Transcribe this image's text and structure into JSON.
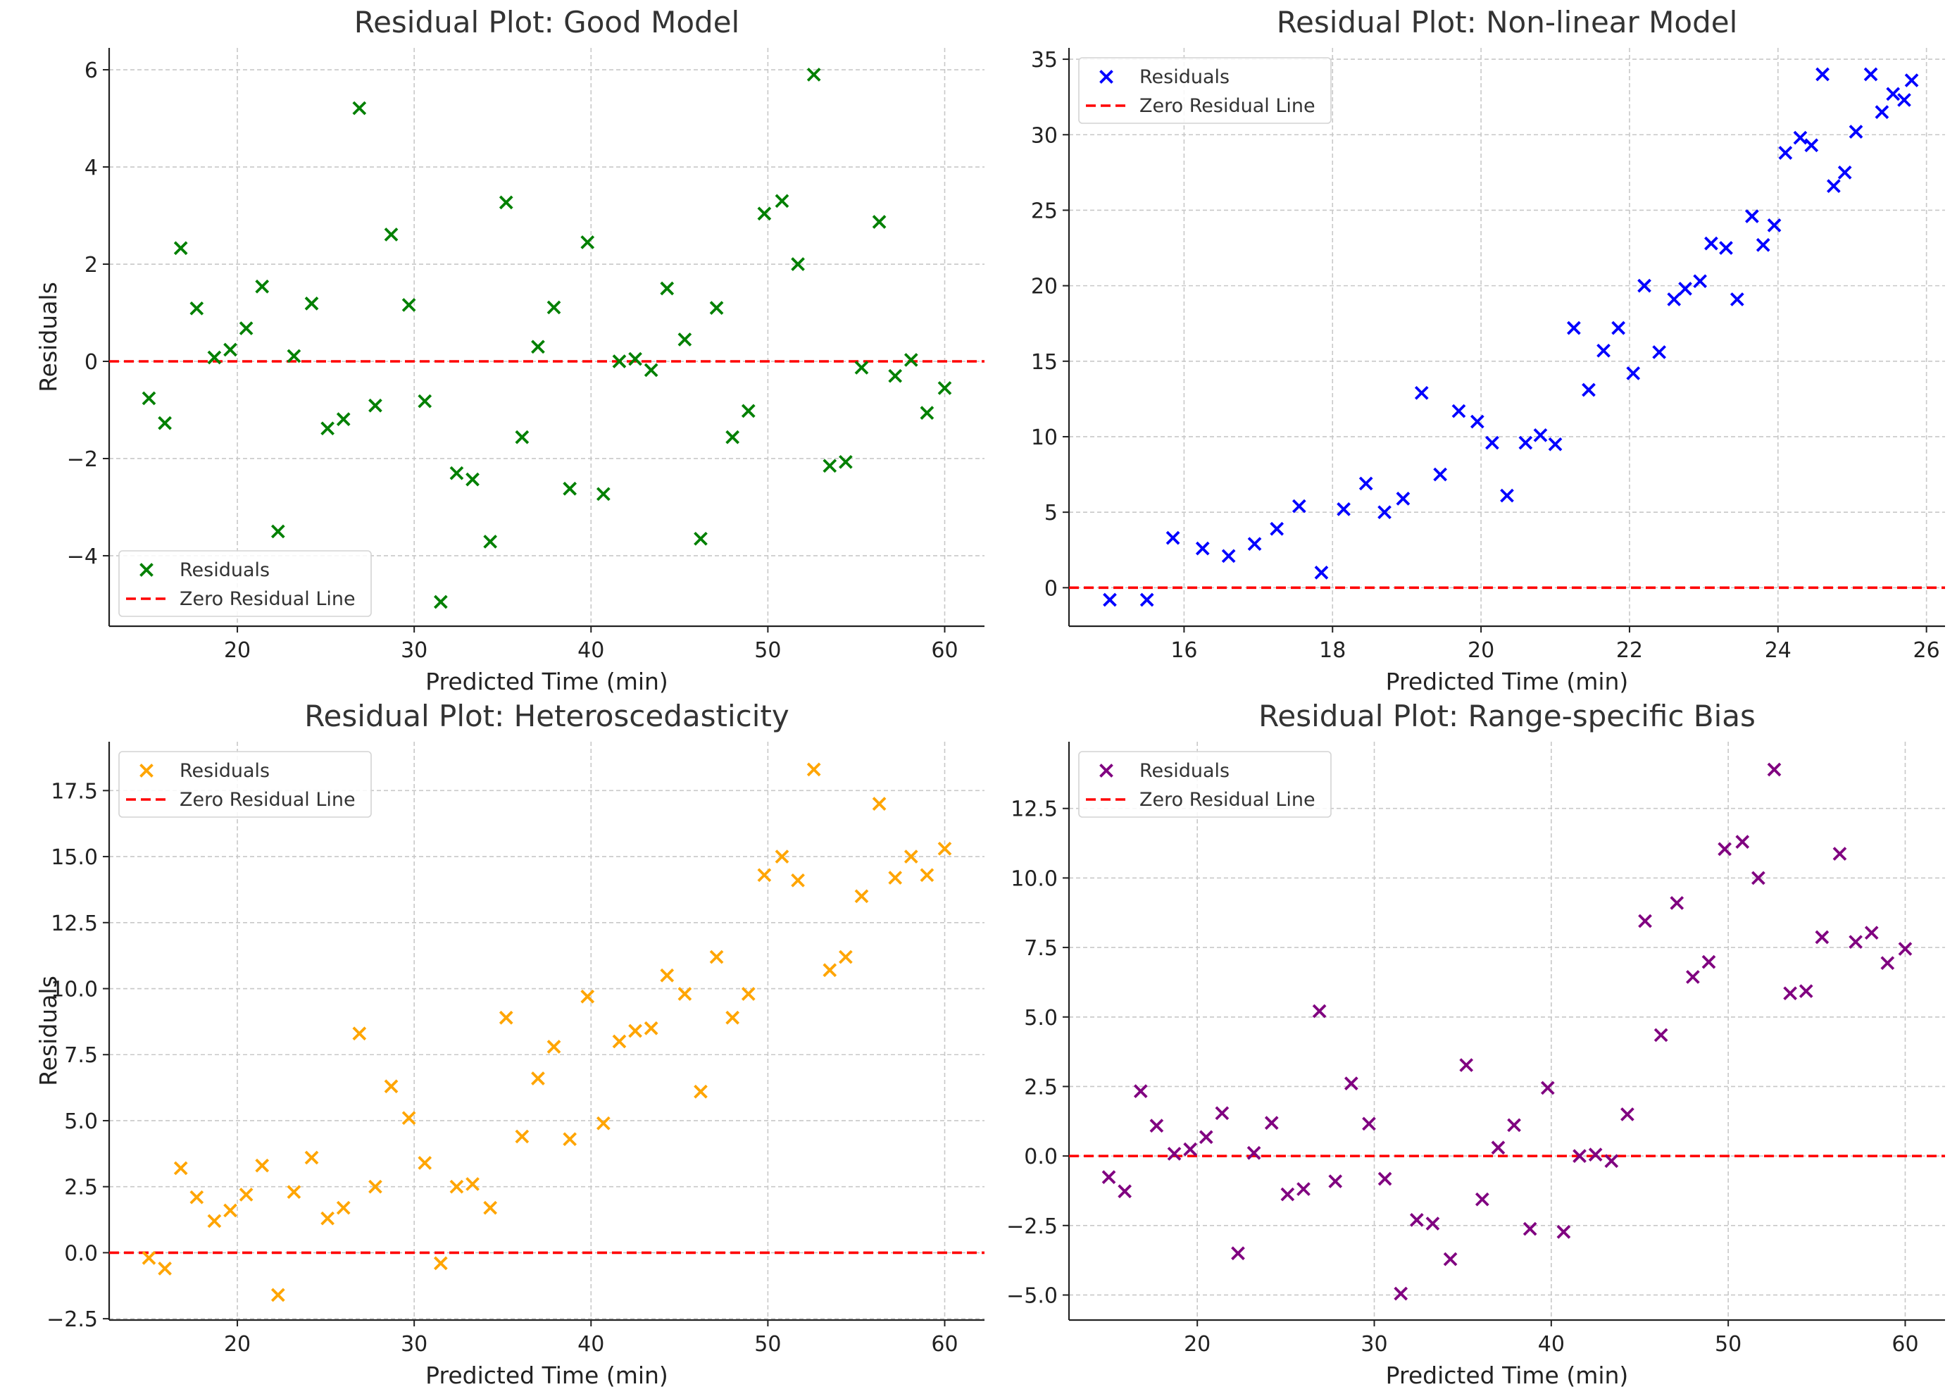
{
  "chart_data": [
    {
      "type": "scatter",
      "title": "Residual Plot: Good Model",
      "xlabel": "Predicted Time (min)",
      "ylabel": "Residuals",
      "xlim": [
        12.75,
        62.25
      ],
      "ylim": [
        -5.45,
        6.45
      ],
      "xticks": [
        20,
        30,
        40,
        50,
        60
      ],
      "yticks": [
        -4,
        -2,
        0,
        2,
        4,
        6
      ],
      "ytick_labels": [
        "−4",
        "−2",
        "0",
        "2",
        "4",
        "6"
      ],
      "color": "#008000",
      "legend_loc": "lower-left",
      "series": [
        {
          "name": "Residuals",
          "x": [
            15,
            15.9,
            16.8,
            17.7,
            18.7,
            19.6,
            20.5,
            21.4,
            22.3,
            23.2,
            24.2,
            25.1,
            26,
            26.9,
            27.8,
            28.7,
            29.7,
            30.6,
            31.5,
            32.4,
            33.3,
            34.3,
            35.2,
            36.1,
            37,
            37.9,
            38.8,
            39.8,
            40.7,
            41.6,
            42.5,
            43.4,
            44.3,
            45.3,
            46.2,
            47.1,
            48,
            48.9,
            49.8,
            50.8,
            51.7,
            52.6,
            53.5,
            54.4,
            55.3,
            56.3,
            57.2,
            58.1,
            59,
            60
          ],
          "y": [
            -0.76,
            -1.27,
            2.33,
            1.09,
            0.08,
            0.24,
            0.68,
            1.54,
            -3.5,
            0.11,
            1.19,
            -1.38,
            -1.19,
            5.21,
            -0.91,
            2.61,
            1.16,
            -0.82,
            -4.95,
            -2.3,
            -2.43,
            -3.71,
            3.27,
            -1.56,
            0.3,
            1.11,
            -2.62,
            2.45,
            -2.73,
            0.0,
            0.05,
            -0.18,
            1.5,
            0.45,
            -3.65,
            1.1,
            -1.56,
            -1.02,
            3.04,
            3.3,
            2.0,
            5.9,
            -2.15,
            -2.07,
            -0.13,
            2.87,
            -0.3,
            0.03,
            -1.06,
            -0.55
          ]
        },
        {
          "name": "Zero Residual Line",
          "y": 0
        }
      ]
    },
    {
      "type": "scatter",
      "title": "Residual Plot: Non-linear Model",
      "xlabel": "Predicted Time (min)",
      "ylabel": "",
      "xlim": [
        14.45,
        26.25
      ],
      "ylim": [
        -2.55,
        35.75
      ],
      "xticks": [
        16,
        18,
        20,
        22,
        24,
        26
      ],
      "yticks": [
        0,
        5,
        10,
        15,
        20,
        25,
        30,
        35
      ],
      "ytick_labels": [
        "0",
        "5",
        "10",
        "15",
        "20",
        "25",
        "30",
        "35"
      ],
      "color": "#0000ff",
      "legend_loc": "upper-left",
      "series": [
        {
          "name": "Residuals",
          "x": [
            15.0,
            15.5,
            15.85,
            16.25,
            16.6,
            16.95,
            17.25,
            17.55,
            17.85,
            18.15,
            18.45,
            18.7,
            18.95,
            19.2,
            19.45,
            19.7,
            19.95,
            20.15,
            20.35,
            20.6,
            20.8,
            21.0,
            21.25,
            21.45,
            21.65,
            21.85,
            22.05,
            22.2,
            22.4,
            22.6,
            22.75,
            22.95,
            23.1,
            23.3,
            23.45,
            23.65,
            23.8,
            23.95,
            24.1,
            24.3,
            24.45,
            24.6,
            24.75,
            24.9,
            25.05,
            25.25,
            25.4,
            25.55,
            25.7,
            25.8
          ],
          "y": [
            -0.8,
            -0.8,
            3.3,
            2.6,
            2.1,
            2.9,
            3.9,
            5.4,
            1.0,
            5.2,
            6.9,
            5.0,
            5.9,
            12.9,
            7.5,
            11.7,
            11.0,
            9.6,
            6.1,
            9.6,
            10.1,
            9.5,
            17.2,
            13.1,
            15.7,
            17.2,
            14.2,
            20.0,
            15.6,
            19.1,
            19.8,
            20.3,
            22.8,
            22.5,
            19.1,
            24.6,
            22.7,
            24.0,
            28.8,
            29.8,
            29.3,
            34.0,
            26.6,
            27.5,
            30.2,
            34.0,
            31.5,
            32.7,
            32.3,
            33.6
          ]
        },
        {
          "name": "Zero Residual Line",
          "y": 0
        }
      ]
    },
    {
      "type": "scatter",
      "title": "Residual Plot: Heteroscedasticity",
      "xlabel": "Predicted Time (min)",
      "ylabel": "Residuals",
      "xlim": [
        12.75,
        62.25
      ],
      "ylim": [
        -2.55,
        19.35
      ],
      "xticks": [
        20,
        30,
        40,
        50,
        60
      ],
      "yticks": [
        -2.5,
        0.0,
        2.5,
        5.0,
        7.5,
        10.0,
        12.5,
        15.0,
        17.5
      ],
      "ytick_labels": [
        "−2.5",
        "0.0",
        "2.5",
        "5.0",
        "7.5",
        "10.0",
        "12.5",
        "15.0",
        "17.5"
      ],
      "color": "#ffa500",
      "legend_loc": "upper-left",
      "series": [
        {
          "name": "Residuals",
          "x": [
            15,
            15.9,
            16.8,
            17.7,
            18.7,
            19.6,
            20.5,
            21.4,
            22.3,
            23.2,
            24.2,
            25.1,
            26,
            26.9,
            27.8,
            28.7,
            29.7,
            30.6,
            31.5,
            32.4,
            33.3,
            34.3,
            35.2,
            36.1,
            37,
            37.9,
            38.8,
            39.8,
            40.7,
            41.6,
            42.5,
            43.4,
            44.3,
            45.3,
            46.2,
            47.1,
            48,
            48.9,
            49.8,
            50.8,
            51.7,
            52.6,
            53.5,
            54.4,
            55.3,
            56.3,
            57.2,
            58.1,
            59,
            60
          ],
          "y": [
            -0.2,
            -0.6,
            3.2,
            2.1,
            1.2,
            1.6,
            2.2,
            3.3,
            -1.6,
            2.3,
            3.6,
            1.3,
            1.7,
            8.3,
            2.5,
            6.3,
            5.1,
            3.4,
            -0.4,
            2.5,
            2.6,
            1.7,
            8.9,
            4.4,
            6.6,
            7.8,
            4.3,
            9.7,
            4.9,
            8.0,
            8.4,
            8.5,
            10.5,
            9.8,
            6.1,
            11.2,
            8.9,
            9.8,
            14.3,
            15.0,
            14.1,
            18.3,
            10.7,
            11.2,
            13.5,
            17.0,
            14.2,
            15.0,
            14.3,
            15.3
          ]
        },
        {
          "name": "Zero Residual Line",
          "y": 0
        }
      ]
    },
    {
      "type": "scatter",
      "title": "Residual Plot: Range-specific Bias",
      "xlabel": "Predicted Time (min)",
      "ylabel": "",
      "xlim": [
        12.75,
        62.25
      ],
      "ylim": [
        -5.9,
        14.9
      ],
      "xticks": [
        20,
        30,
        40,
        50,
        60
      ],
      "yticks": [
        -5.0,
        -2.5,
        0.0,
        2.5,
        5.0,
        7.5,
        10.0,
        12.5
      ],
      "ytick_labels": [
        "−5.0",
        "−2.5",
        "0.0",
        "2.5",
        "5.0",
        "7.5",
        "10.0",
        "12.5"
      ],
      "color": "#800080",
      "legend_loc": "upper-left",
      "series": [
        {
          "name": "Residuals",
          "x": [
            15,
            15.9,
            16.8,
            17.7,
            18.7,
            19.6,
            20.5,
            21.4,
            22.3,
            23.2,
            24.2,
            25.1,
            26,
            26.9,
            27.8,
            28.7,
            29.7,
            30.6,
            31.5,
            32.4,
            33.3,
            34.3,
            35.2,
            36.1,
            37,
            37.9,
            38.8,
            39.8,
            40.7,
            41.6,
            42.5,
            43.4,
            44.3,
            45.3,
            46.2,
            47.1,
            48,
            48.9,
            49.8,
            50.8,
            51.7,
            52.6,
            53.5,
            54.4,
            55.3,
            56.3,
            57.2,
            58.1,
            59,
            60
          ],
          "y": [
            -0.76,
            -1.27,
            2.33,
            1.09,
            0.08,
            0.24,
            0.68,
            1.54,
            -3.5,
            0.11,
            1.19,
            -1.38,
            -1.19,
            5.21,
            -0.91,
            2.61,
            1.16,
            -0.82,
            -4.95,
            -2.3,
            -2.43,
            -3.71,
            3.27,
            -1.56,
            0.3,
            1.11,
            -2.62,
            2.45,
            -2.73,
            0.0,
            0.05,
            -0.18,
            1.5,
            8.45,
            4.35,
            9.1,
            6.44,
            6.98,
            11.04,
            11.3,
            10.0,
            13.9,
            5.85,
            5.93,
            7.87,
            10.87,
            7.7,
            8.03,
            6.94,
            7.45
          ]
        },
        {
          "name": "Zero Residual Line",
          "y": 0
        }
      ]
    }
  ]
}
